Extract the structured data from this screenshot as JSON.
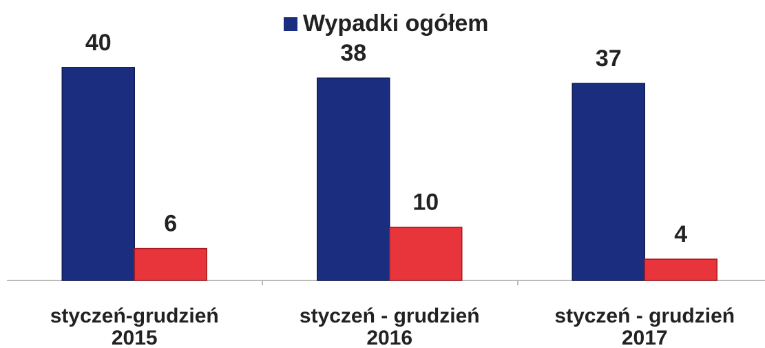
{
  "chart_data": {
    "type": "bar",
    "categories": [
      [
        "styczeń-grudzień",
        "2015"
      ],
      [
        "styczeń - grudzień",
        "2016"
      ],
      [
        "styczeń - grudzień",
        "2017"
      ]
    ],
    "series": [
      {
        "name": "Wypadki ogółem",
        "color": "#1b2d7f",
        "values": [
          40,
          38,
          37
        ]
      },
      {
        "color": "#e8353b",
        "values": [
          6,
          10,
          4
        ]
      }
    ],
    "legend": "top"
  }
}
